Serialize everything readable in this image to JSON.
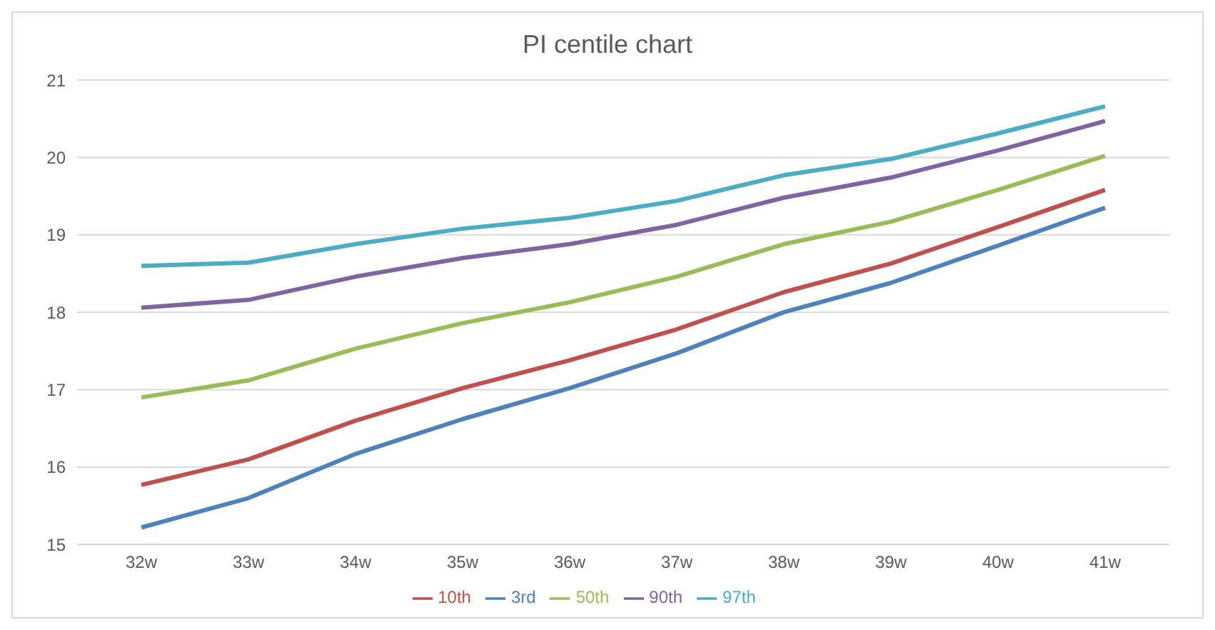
{
  "chart_data": {
    "type": "line",
    "title": "PI centile chart",
    "categories": [
      "32w",
      "33w",
      "34w",
      "35w",
      "36w",
      "37w",
      "38w",
      "39w",
      "40w",
      "41w"
    ],
    "series": [
      {
        "name": "3rd",
        "color": "#4f81bd",
        "values": [
          15.22,
          15.6,
          16.17,
          16.62,
          17.02,
          17.47,
          18.0,
          18.38,
          18.86,
          19.35
        ]
      },
      {
        "name": "10th",
        "color": "#c0504d",
        "values": [
          15.77,
          16.1,
          16.6,
          17.02,
          17.38,
          17.78,
          18.26,
          18.63,
          19.1,
          19.58
        ]
      },
      {
        "name": "50th",
        "color": "#9bbb59",
        "values": [
          16.9,
          17.12,
          17.53,
          17.86,
          18.13,
          18.46,
          18.88,
          19.17,
          19.58,
          20.02
        ]
      },
      {
        "name": "90th",
        "color": "#8064a2",
        "values": [
          18.06,
          18.16,
          18.46,
          18.7,
          18.88,
          19.13,
          19.48,
          19.74,
          20.09,
          20.47
        ]
      },
      {
        "name": "97th",
        "color": "#4bacc6",
        "values": [
          18.6,
          18.64,
          18.88,
          19.08,
          19.22,
          19.44,
          19.77,
          19.98,
          20.31,
          20.66
        ]
      }
    ],
    "ylim": [
      15,
      21
    ],
    "yticks": [
      15,
      16,
      17,
      18,
      19,
      20,
      21
    ],
    "grid": "y",
    "legend": "bottom",
    "marker": "none",
    "line_style": "solid"
  }
}
